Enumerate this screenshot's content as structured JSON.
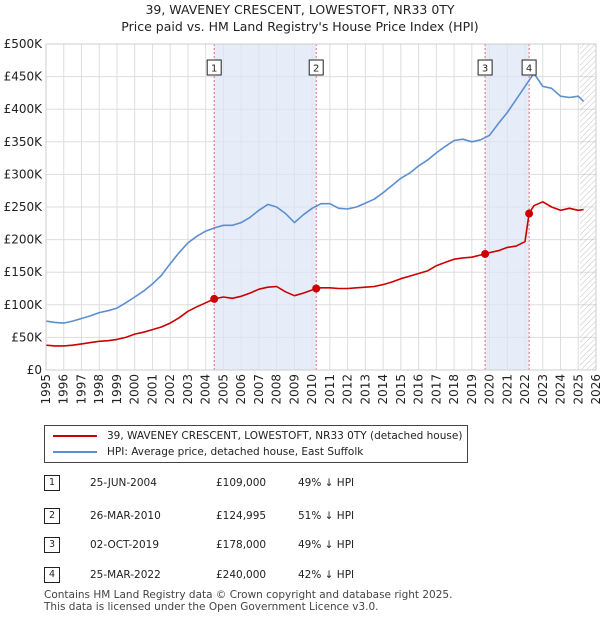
{
  "title_line1": "39, WAVENEY CRESCENT, LOWESTOFT, NR33 0TY",
  "title_line2": "Price paid vs. HM Land Registry's House Price Index (HPI)",
  "colors": {
    "property": "#cc0000",
    "hpi": "#5b8fd0",
    "marker_line": "#e07070",
    "shade": "#dde6f5",
    "future_hatch": "#999999"
  },
  "chart_data": {
    "type": "line",
    "xlim": [
      1995,
      2026
    ],
    "ylim": [
      0,
      500000
    ],
    "y_ticks": [
      0,
      50000,
      100000,
      150000,
      200000,
      250000,
      300000,
      350000,
      400000,
      450000,
      500000
    ],
    "y_tick_labels": [
      "£0",
      "£50K",
      "£100K",
      "£150K",
      "£200K",
      "£250K",
      "£300K",
      "£350K",
      "£400K",
      "£450K",
      "£500K"
    ],
    "x_ticks": [
      "1995",
      "1996",
      "1997",
      "1998",
      "1999",
      "2000",
      "2001",
      "2002",
      "2003",
      "2004",
      "2005",
      "2006",
      "2007",
      "2008",
      "2009",
      "2010",
      "2011",
      "2012",
      "2013",
      "2014",
      "2015",
      "2016",
      "2017",
      "2018",
      "2019",
      "2020",
      "2021",
      "2022",
      "2023",
      "2024",
      "2025",
      "2026"
    ],
    "forecast_start": 2025.1,
    "series": [
      {
        "name": "39, WAVENEY CRESCENT, LOWESTOFT, NR33 0TY (detached house)",
        "color": "#cc0000",
        "x": [
          1995.0,
          1995.5,
          1996.0,
          1996.5,
          1997.0,
          1997.5,
          1998.0,
          1998.5,
          1999.0,
          1999.5,
          2000.0,
          2000.5,
          2001.0,
          2001.5,
          2002.0,
          2002.5,
          2003.0,
          2003.5,
          2004.0,
          2004.48,
          2005.0,
          2005.5,
          2006.0,
          2006.5,
          2007.0,
          2007.5,
          2008.0,
          2008.5,
          2009.0,
          2009.5,
          2010.23,
          2010.5,
          2011.0,
          2011.5,
          2012.0,
          2012.5,
          2013.0,
          2013.5,
          2014.0,
          2014.5,
          2015.0,
          2015.5,
          2016.0,
          2016.5,
          2017.0,
          2017.5,
          2018.0,
          2018.5,
          2019.0,
          2019.75,
          2020.0,
          2020.5,
          2021.0,
          2021.5,
          2022.0,
          2022.23,
          2022.5,
          2023.0,
          2023.5,
          2024.0,
          2024.5,
          2025.0,
          2025.3
        ],
        "values": [
          38000,
          37000,
          37000,
          38000,
          40000,
          42000,
          44000,
          45000,
          47000,
          50000,
          55000,
          58000,
          62000,
          66000,
          72000,
          80000,
          90000,
          97000,
          103000,
          109000,
          112000,
          110000,
          113000,
          118000,
          124000,
          127000,
          128000,
          120000,
          114000,
          118000,
          124995,
          126000,
          126000,
          125000,
          125000,
          126000,
          127000,
          128000,
          131000,
          135000,
          140000,
          144000,
          148000,
          152000,
          160000,
          165000,
          170000,
          172000,
          173000,
          178000,
          180000,
          183000,
          188000,
          190000,
          197000,
          240000,
          252000,
          258000,
          250000,
          245000,
          248000,
          245000,
          246000
        ]
      },
      {
        "name": "HPI: Average price, detached house, East Suffolk",
        "color": "#5b8fd0",
        "x": [
          1995.0,
          1995.5,
          1996.0,
          1996.5,
          1997.0,
          1997.5,
          1998.0,
          1998.5,
          1999.0,
          1999.5,
          2000.0,
          2000.5,
          2001.0,
          2001.5,
          2002.0,
          2002.5,
          2003.0,
          2003.5,
          2004.0,
          2004.5,
          2005.0,
          2005.5,
          2006.0,
          2006.5,
          2007.0,
          2007.5,
          2008.0,
          2008.5,
          2009.0,
          2009.5,
          2010.0,
          2010.5,
          2011.0,
          2011.5,
          2012.0,
          2012.5,
          2013.0,
          2013.5,
          2014.0,
          2014.5,
          2015.0,
          2015.5,
          2016.0,
          2016.5,
          2017.0,
          2017.5,
          2018.0,
          2018.5,
          2019.0,
          2019.5,
          2020.0,
          2020.5,
          2021.0,
          2021.5,
          2022.0,
          2022.5,
          2023.0,
          2023.5,
          2024.0,
          2024.5,
          2025.0,
          2025.3
        ],
        "values": [
          75000,
          73000,
          72000,
          75000,
          79000,
          83000,
          88000,
          91000,
          95000,
          103000,
          112000,
          121000,
          132000,
          145000,
          163000,
          180000,
          195000,
          205000,
          213000,
          218000,
          222000,
          222000,
          226000,
          234000,
          245000,
          254000,
          250000,
          240000,
          226000,
          238000,
          248000,
          255000,
          255000,
          248000,
          247000,
          250000,
          256000,
          262000,
          272000,
          283000,
          294000,
          302000,
          313000,
          322000,
          333000,
          343000,
          352000,
          354000,
          350000,
          353000,
          360000,
          378000,
          395000,
          415000,
          435000,
          455000,
          435000,
          432000,
          420000,
          418000,
          420000,
          412000
        ]
      }
    ],
    "transactions": [
      {
        "id": "1",
        "x": 2004.48,
        "value": 109000,
        "date": "25-JUN-2004",
        "price": "£109,000",
        "hpi_diff": "49% ↓ HPI"
      },
      {
        "id": "2",
        "x": 2010.23,
        "value": 124995,
        "date": "26-MAR-2010",
        "price": "£124,995",
        "hpi_diff": "51% ↓ HPI"
      },
      {
        "id": "3",
        "x": 2019.75,
        "value": 178000,
        "date": "02-OCT-2019",
        "price": "£178,000",
        "hpi_diff": "49% ↓ HPI"
      },
      {
        "id": "4",
        "x": 2022.23,
        "value": 240000,
        "date": "25-MAR-2022",
        "price": "£240,000",
        "hpi_diff": "42% ↓ HPI"
      }
    ]
  },
  "legend": {
    "property_label": "39, WAVENEY CRESCENT, LOWESTOFT, NR33 0TY (detached house)",
    "hpi_label": "HPI: Average price, detached house, East Suffolk"
  },
  "footer": {
    "line1": "Contains HM Land Registry data © Crown copyright and database right 2025.",
    "line2": "This data is licensed under the Open Government Licence v3.0."
  }
}
